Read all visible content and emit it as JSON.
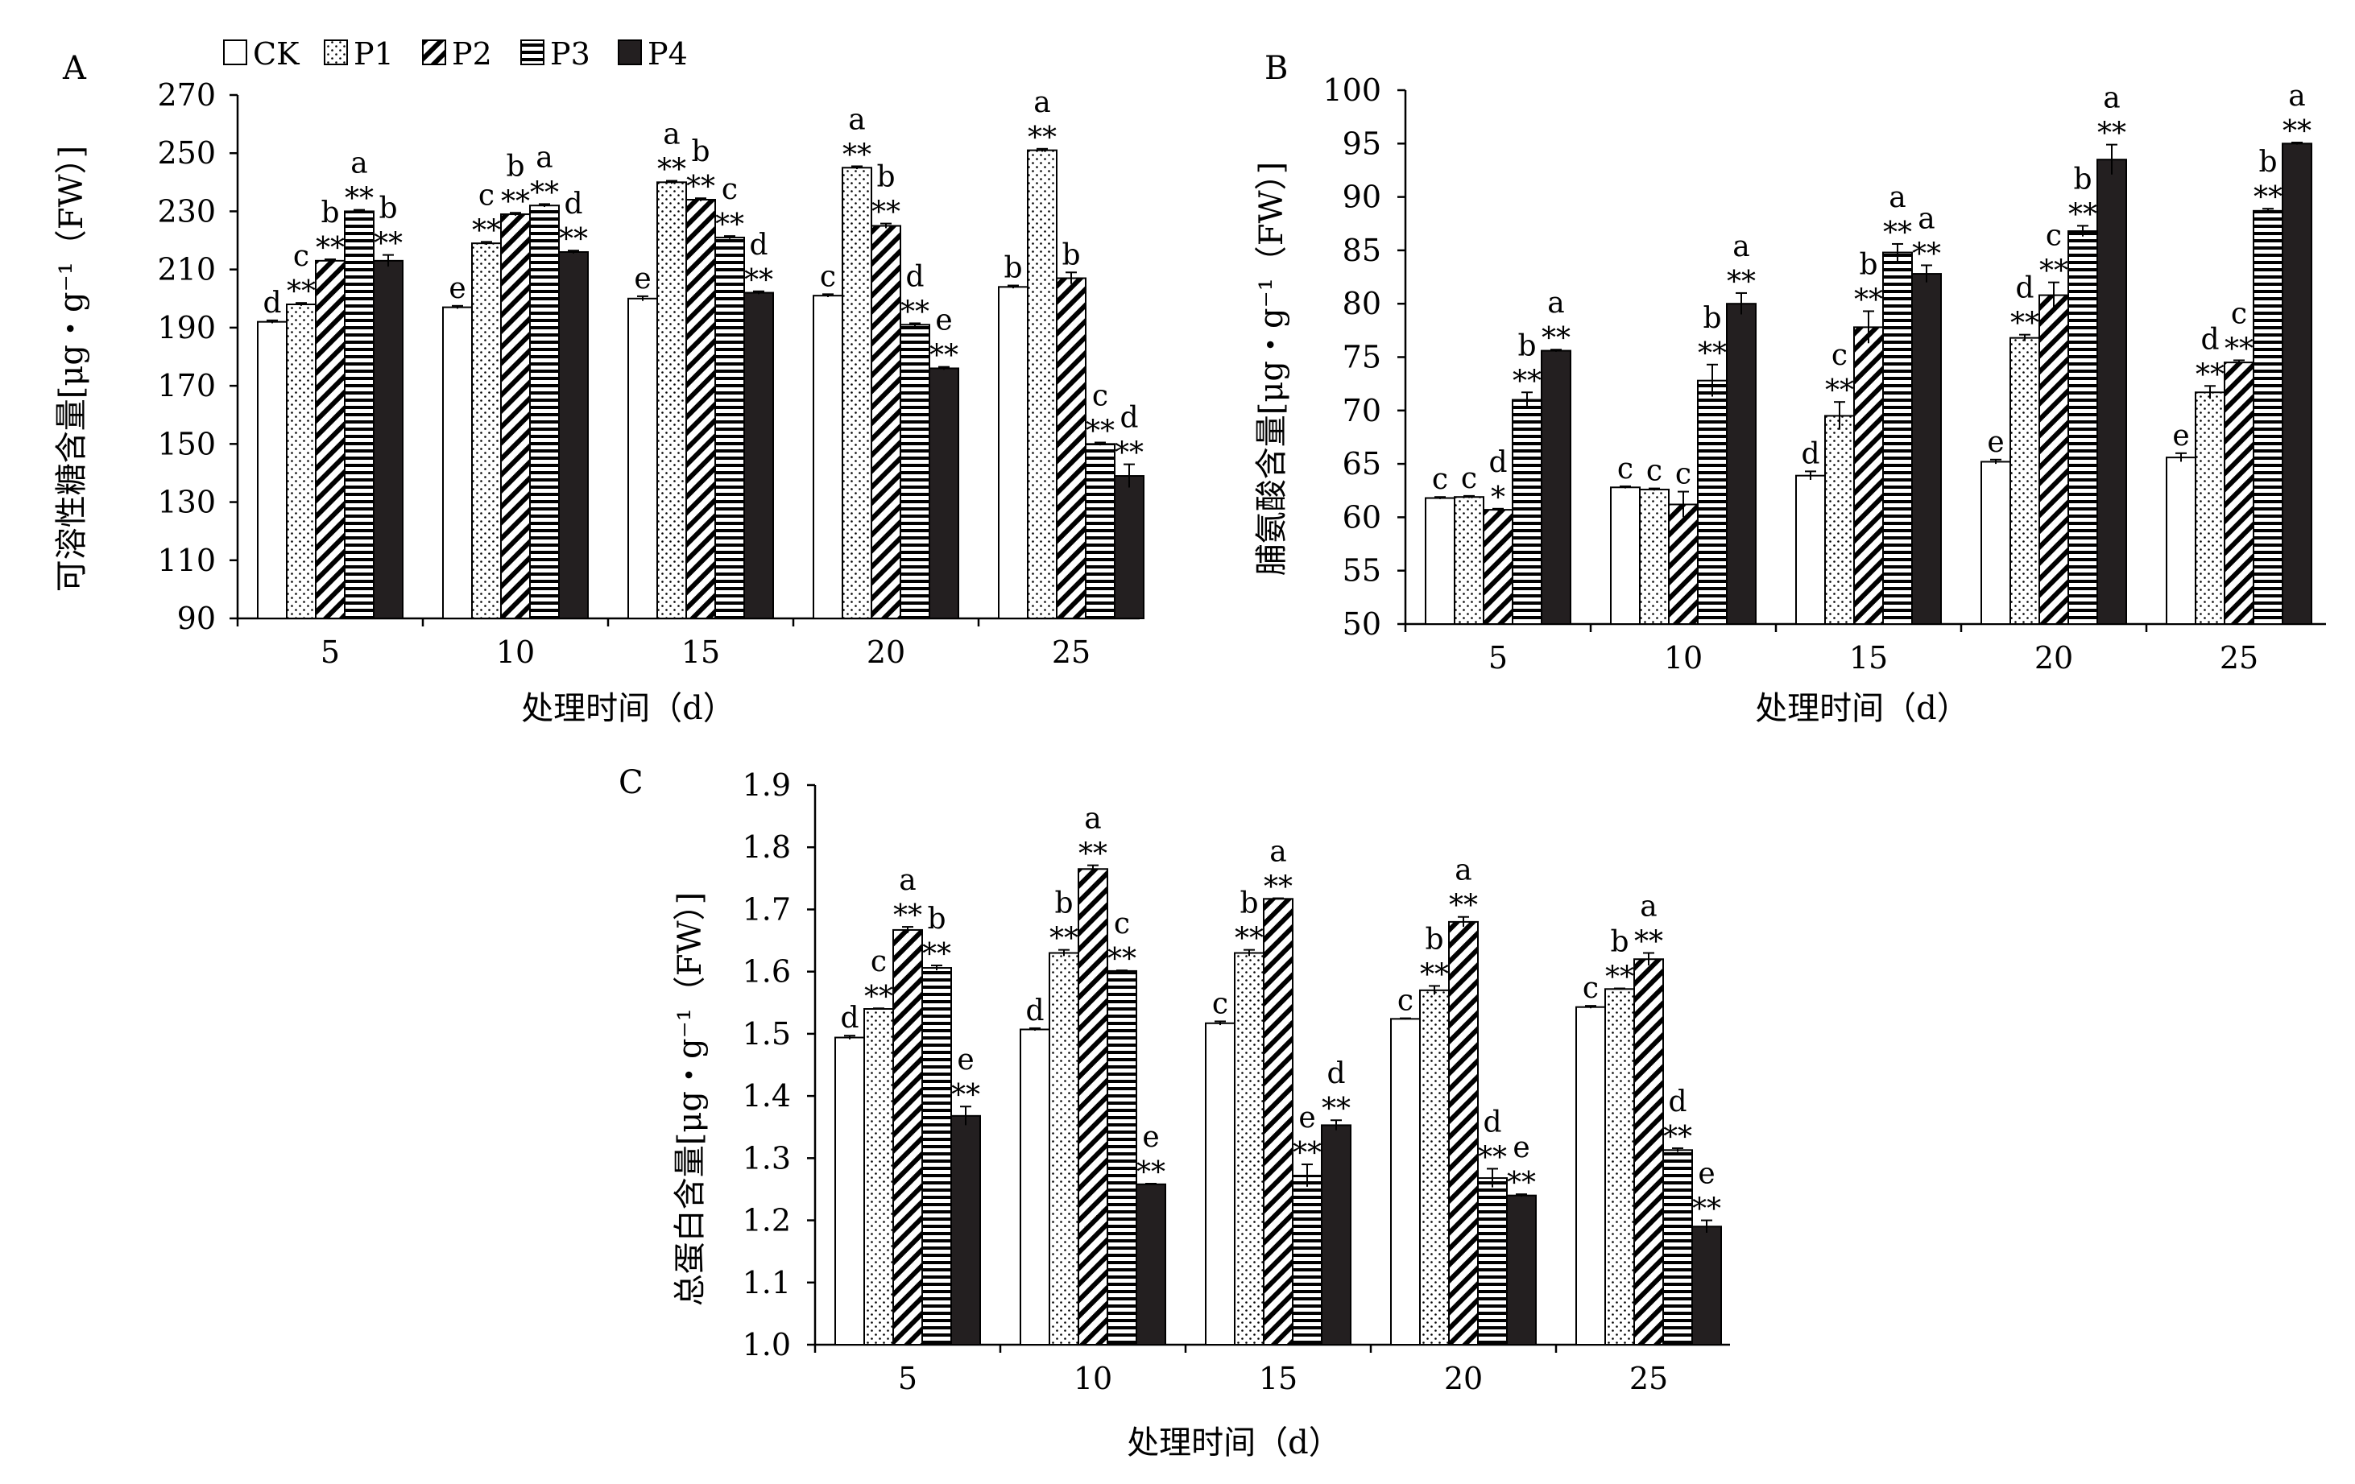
{
  "legend": {
    "items": [
      {
        "label": "CK",
        "pattern": "plain"
      },
      {
        "label": "P1",
        "pattern": "dots"
      },
      {
        "label": "P2",
        "pattern": "diag"
      },
      {
        "label": "P3",
        "pattern": "horiz"
      },
      {
        "label": "P4",
        "pattern": "solid"
      }
    ]
  },
  "colors": {
    "ink": "#000000",
    "fill_solid": "#231f20",
    "background": "#ffffff"
  },
  "chart_data": [
    {
      "type": "bar",
      "panel": "A",
      "ylabel": "可溶性糖含量[μg・g⁻¹（FW）]",
      "xlabel": "处理时间（d）",
      "categories": [
        "5",
        "10",
        "15",
        "20",
        "25"
      ],
      "ylim": [
        90,
        270
      ],
      "yticks": [
        "90",
        "110",
        "130",
        "150",
        "170",
        "190",
        "210",
        "230",
        "250",
        "270"
      ],
      "grid": false,
      "series": [
        {
          "name": "CK",
          "values": [
            192,
            197,
            200,
            201,
            204
          ],
          "errors": [
            0.5,
            0.5,
            0.8,
            0.5,
            0.5
          ],
          "letters": [
            "d",
            "e",
            "e",
            "c",
            "b"
          ],
          "stars": [
            "",
            "",
            "",
            "",
            ""
          ]
        },
        {
          "name": "P1",
          "values": [
            198,
            219,
            240,
            245,
            251
          ],
          "errors": [
            0.5,
            0.5,
            0.5,
            0.5,
            0.5
          ],
          "letters": [
            "c",
            "c",
            "a",
            "a",
            "a"
          ],
          "stars": [
            "**",
            "**",
            "**",
            "**",
            "**"
          ]
        },
        {
          "name": "P2",
          "values": [
            213,
            229,
            234,
            225,
            207
          ],
          "errors": [
            0.5,
            0.5,
            0.5,
            0.8,
            2
          ],
          "letters": [
            "b",
            "b",
            "b",
            "b",
            "b"
          ],
          "stars": [
            "**",
            "**",
            "**",
            "**",
            ""
          ]
        },
        {
          "name": "P3",
          "values": [
            230,
            232,
            221,
            191,
            150
          ],
          "errors": [
            0.5,
            0.5,
            0.5,
            0.5,
            0.5
          ],
          "letters": [
            "a",
            "a",
            "c",
            "d",
            "c"
          ],
          "stars": [
            "**",
            "**",
            "**",
            "**",
            "**"
          ]
        },
        {
          "name": "P4",
          "values": [
            213,
            216,
            202,
            176,
            139
          ],
          "errors": [
            2,
            0.5,
            0.5,
            0.5,
            4
          ],
          "letters": [
            "b",
            "d",
            "d",
            "e",
            "d"
          ],
          "stars": [
            "**",
            "**",
            "**",
            "**",
            "**"
          ]
        }
      ]
    },
    {
      "type": "bar",
      "panel": "B",
      "ylabel": "脯氨酸含量[μg・g⁻¹（FW）]",
      "xlabel": "处理时间（d）",
      "categories": [
        "5",
        "10",
        "15",
        "20",
        "25"
      ],
      "ylim": [
        50,
        100
      ],
      "yticks": [
        "50",
        "55",
        "60",
        "65",
        "70",
        "75",
        "80",
        "85",
        "90",
        "95",
        "100"
      ],
      "grid": false,
      "series": [
        {
          "name": "CK",
          "values": [
            61.8,
            62.8,
            63.9,
            65.2,
            65.6
          ],
          "errors": [
            0.1,
            0.1,
            0.4,
            0.2,
            0.4
          ],
          "letters": [
            "c",
            "c",
            "d",
            "e",
            "e"
          ],
          "stars": [
            "",
            "",
            "",
            "",
            ""
          ]
        },
        {
          "name": "P1",
          "values": [
            61.9,
            62.6,
            69.5,
            76.8,
            71.7
          ],
          "errors": [
            0.1,
            0.1,
            1.3,
            0.3,
            0.6
          ],
          "letters": [
            "c",
            "c",
            "c",
            "d",
            "d"
          ],
          "stars": [
            "",
            "",
            "**",
            "**",
            "**"
          ]
        },
        {
          "name": "P2",
          "values": [
            60.7,
            61.2,
            77.8,
            80.8,
            74.5
          ],
          "errors": [
            0.1,
            1.2,
            1.5,
            1.2,
            0.2
          ],
          "letters": [
            "d",
            "c",
            "b",
            "c",
            "c"
          ],
          "stars": [
            "*",
            "",
            "**",
            "**",
            "**"
          ]
        },
        {
          "name": "P3",
          "values": [
            71.0,
            72.8,
            84.8,
            86.8,
            88.7
          ],
          "errors": [
            0.7,
            1.5,
            0.8,
            0.5,
            0.2
          ],
          "letters": [
            "b",
            "b",
            "a",
            "b",
            "b"
          ],
          "stars": [
            "**",
            "**",
            "**",
            "**",
            "**"
          ]
        },
        {
          "name": "P4",
          "values": [
            75.6,
            80.0,
            82.8,
            93.5,
            95.0
          ],
          "errors": [
            0.1,
            1.0,
            0.8,
            1.4,
            0.1
          ],
          "letters": [
            "a",
            "a",
            "a",
            "a",
            "a"
          ],
          "stars": [
            "**",
            "**",
            "**",
            "**",
            "**"
          ]
        }
      ]
    },
    {
      "type": "bar",
      "panel": "C",
      "ylabel": "总蛋白含量[μg・g⁻¹（FW）]",
      "xlabel": "处理时间（d）",
      "categories": [
        "5",
        "10",
        "15",
        "20",
        "25"
      ],
      "ylim": [
        1.0,
        1.9
      ],
      "yticks": [
        "1.0",
        "1.1",
        "1.2",
        "1.3",
        "1.4",
        "1.5",
        "1.6",
        "1.7",
        "1.8",
        "1.9"
      ],
      "grid": false,
      "series": [
        {
          "name": "CK",
          "values": [
            1.494,
            1.507,
            1.517,
            1.524,
            1.543
          ],
          "errors": [
            0.003,
            0.002,
            0.003,
            0.001,
            0.002
          ],
          "letters": [
            "d",
            "d",
            "c",
            "c",
            "c"
          ],
          "stars": [
            "",
            "",
            "",
            "",
            ""
          ]
        },
        {
          "name": "P1",
          "values": [
            1.54,
            1.63,
            1.63,
            1.57,
            1.572
          ],
          "errors": [
            0.001,
            0.005,
            0.005,
            0.007,
            0.001
          ],
          "letters": [
            "c",
            "b",
            "b",
            "b",
            "b"
          ],
          "stars": [
            "**",
            "**",
            "**",
            "**",
            "**"
          ]
        },
        {
          "name": "P2",
          "values": [
            1.667,
            1.765,
            1.717,
            1.68,
            1.62
          ],
          "errors": [
            0.005,
            0.006,
            0.001,
            0.008,
            0.01
          ],
          "letters": [
            "a",
            "a",
            "a",
            "a",
            "a"
          ],
          "stars": [
            "**",
            "**",
            "**",
            "**",
            "**"
          ]
        },
        {
          "name": "P3",
          "values": [
            1.606,
            1.601,
            1.272,
            1.268,
            1.313
          ],
          "errors": [
            0.004,
            0.001,
            0.018,
            0.015,
            0.003
          ],
          "letters": [
            "b",
            "c",
            "e",
            "d",
            "d"
          ],
          "stars": [
            "**",
            "**",
            "**",
            "**",
            "**"
          ]
        },
        {
          "name": "P4",
          "values": [
            1.368,
            1.258,
            1.353,
            1.24,
            1.19
          ],
          "errors": [
            0.015,
            0.001,
            0.008,
            0.002,
            0.01
          ],
          "letters": [
            "e",
            "e",
            "d",
            "e",
            "e"
          ],
          "stars": [
            "**",
            "**",
            "**",
            "**",
            "**"
          ]
        }
      ]
    }
  ]
}
